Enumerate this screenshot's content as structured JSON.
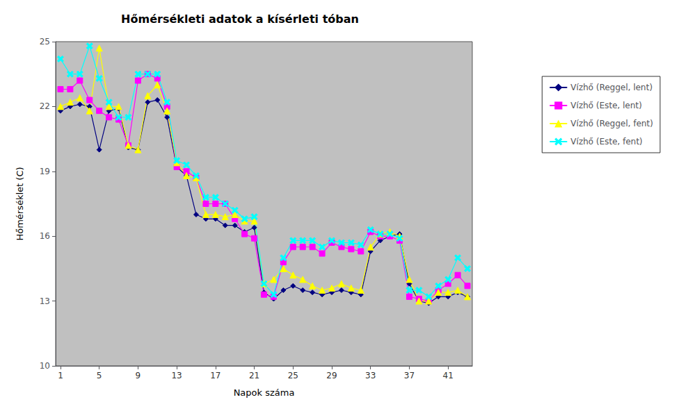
{
  "chart_data": {
    "type": "line",
    "title": "Hőmérsékleti adatok a kísérleti tóban",
    "x_label": "Napok száma",
    "y_label": "Hőmérséklet (C)",
    "xlim": [
      0.5,
      43.5
    ],
    "ylim": [
      10,
      25
    ],
    "xticks": [
      1,
      5,
      9,
      13,
      17,
      21,
      25,
      29,
      33,
      37,
      41
    ],
    "yticks": [
      10,
      13,
      16,
      19,
      22,
      25
    ],
    "grid": false,
    "legend": "right",
    "x": [
      1,
      2,
      3,
      4,
      5,
      6,
      7,
      8,
      9,
      10,
      11,
      12,
      13,
      14,
      15,
      16,
      17,
      18,
      19,
      20,
      21,
      22,
      23,
      24,
      25,
      26,
      27,
      28,
      29,
      30,
      31,
      32,
      33,
      34,
      35,
      36,
      37,
      38,
      39,
      40,
      41,
      42,
      43
    ],
    "series": [
      {
        "name": "Vízhő (Reggel, lent)",
        "color": "#000080",
        "marker": "diamond",
        "values": [
          21.8,
          22.0,
          22.1,
          22.0,
          20.0,
          21.8,
          21.9,
          20.1,
          20.0,
          22.2,
          22.3,
          21.5,
          19.2,
          18.8,
          17.0,
          16.8,
          16.8,
          16.5,
          16.5,
          16.2,
          16.4,
          13.4,
          13.1,
          13.5,
          13.7,
          13.5,
          13.4,
          13.3,
          13.4,
          13.5,
          13.4,
          13.3,
          15.3,
          15.8,
          16.0,
          16.1,
          13.8,
          13.0,
          12.9,
          13.2,
          13.2,
          13.4,
          13.2
        ]
      },
      {
        "name": "Vízhő (Este, lent)",
        "color": "#ff00ff",
        "marker": "square",
        "values": [
          22.8,
          22.8,
          23.2,
          22.3,
          21.8,
          21.5,
          21.4,
          20.2,
          23.2,
          23.5,
          23.3,
          22.0,
          19.2,
          19.0,
          18.7,
          17.5,
          17.5,
          17.5,
          16.8,
          16.1,
          15.9,
          13.3,
          13.2,
          14.8,
          15.5,
          15.5,
          15.5,
          15.2,
          15.7,
          15.5,
          15.4,
          15.3,
          16.2,
          16.0,
          16.0,
          15.8,
          13.2,
          13.1,
          13.0,
          13.5,
          13.8,
          14.2,
          13.7
        ]
      },
      {
        "name": "Vízhő (Reggel, fent)",
        "color": "#ffff00",
        "marker": "triangle",
        "values": [
          22.0,
          22.2,
          22.4,
          21.8,
          24.7,
          22.0,
          22.0,
          20.2,
          20.0,
          22.5,
          23.0,
          21.8,
          19.4,
          18.8,
          18.7,
          17.0,
          17.0,
          16.9,
          17.0,
          16.7,
          16.7,
          13.8,
          14.0,
          14.5,
          14.2,
          14.0,
          13.7,
          13.5,
          13.6,
          13.8,
          13.6,
          13.5,
          15.5,
          16.1,
          16.2,
          16.0,
          14.0,
          13.0,
          13.0,
          13.4,
          13.4,
          13.5,
          13.2
        ]
      },
      {
        "name": "Vízhő (Este, fent)",
        "color": "#00ffff",
        "marker": "x",
        "values": [
          24.2,
          23.5,
          23.5,
          24.8,
          23.3,
          22.2,
          21.5,
          21.5,
          23.5,
          23.5,
          23.5,
          22.2,
          19.5,
          19.3,
          18.8,
          17.8,
          17.8,
          17.5,
          17.2,
          16.8,
          16.9,
          13.8,
          13.3,
          15.0,
          15.8,
          15.8,
          15.8,
          15.5,
          15.8,
          15.7,
          15.7,
          15.6,
          16.3,
          16.1,
          16.1,
          15.9,
          13.5,
          13.5,
          13.2,
          13.7,
          14.0,
          15.0,
          14.5
        ]
      }
    ]
  }
}
